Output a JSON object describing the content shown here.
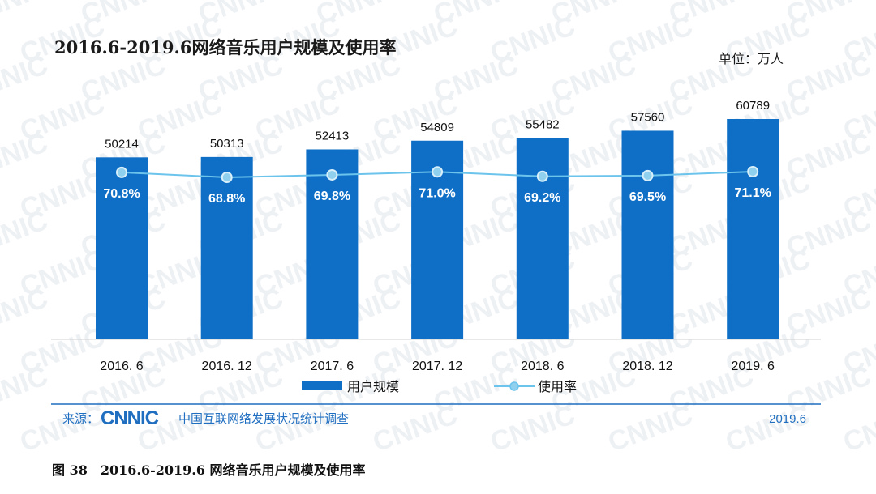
{
  "chart_title": "2016.6-2019.6网络音乐用户规模及使用率",
  "unit_label": "单位：万人",
  "chart_data": {
    "type": "bar",
    "title": "2016.6-2019.6网络音乐用户规模及使用率",
    "categories": [
      "2016. 6",
      "2016. 12",
      "2017. 6",
      "2017. 12",
      "2018. 6",
      "2018. 12",
      "2019. 6"
    ],
    "series": [
      {
        "name": "用户规模",
        "type": "bar",
        "values": [
          50214,
          50313,
          52413,
          54809,
          55482,
          57560,
          60789
        ],
        "labels": [
          "50214",
          "50313",
          "52413",
          "54809",
          "55482",
          "57560",
          "60789"
        ],
        "color": "#0f6fc6"
      },
      {
        "name": "使用率",
        "type": "line",
        "values": [
          70.8,
          68.8,
          69.8,
          71.0,
          69.2,
          69.5,
          71.1
        ],
        "labels": [
          "70.8%",
          "68.8%",
          "69.8%",
          "71.0%",
          "69.2%",
          "69.5%",
          "71.1%"
        ],
        "color": "#6cc4ec"
      }
    ],
    "ylim": [
      0,
      65000
    ],
    "grid": false,
    "legend": "bottom"
  },
  "source": {
    "label": "来源：",
    "logo": "CNNIC",
    "org": "中国互联网络发展状况统计调查",
    "date": "2019.6"
  },
  "watermark": "CNNIC",
  "caption": "图 38　2016.6-2019.6 网络音乐用户规模及使用率"
}
